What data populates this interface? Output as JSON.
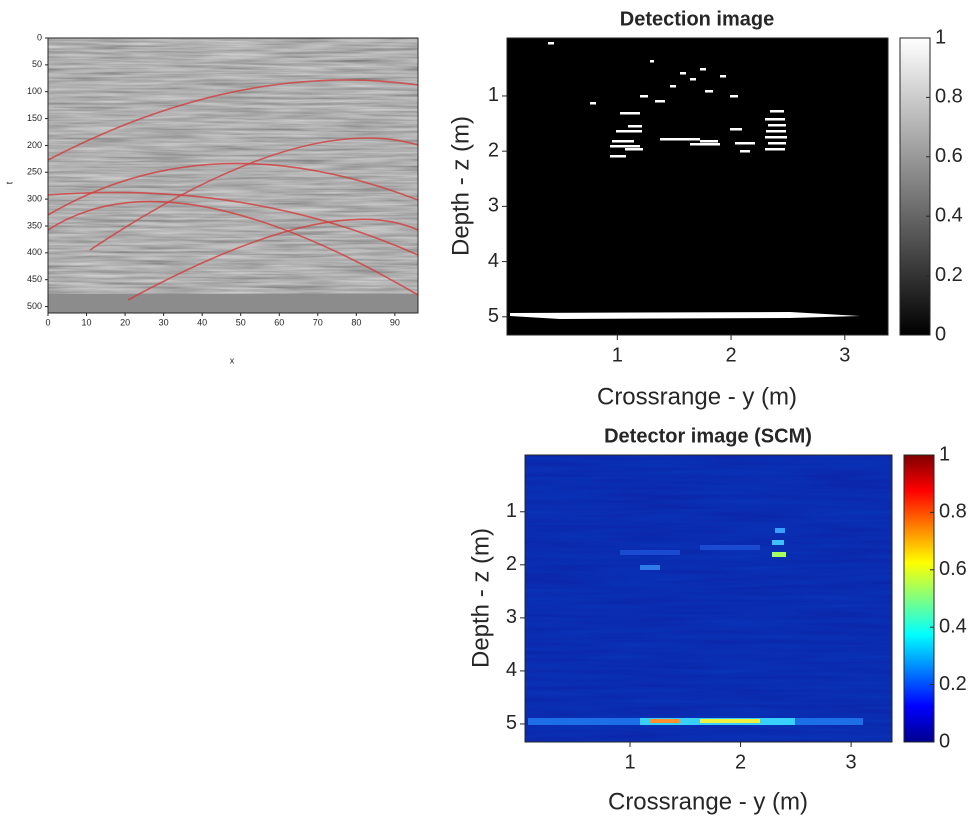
{
  "chart_data": [
    {
      "type": "image",
      "xlabel": "x",
      "ylabel": "t",
      "colormap": "gray",
      "xlim": [
        0,
        96
      ],
      "ylim": [
        512,
        0
      ],
      "xticks": [
        0,
        10,
        20,
        30,
        40,
        50,
        60,
        70,
        80,
        90
      ],
      "yticks": [
        0,
        50,
        100,
        150,
        200,
        250,
        300,
        350,
        400,
        450,
        500
      ]
    },
    {
      "type": "image",
      "title": "Detection image",
      "xlabel": "Crossrange - y (m)",
      "ylabel": "Depth - z (m)",
      "colormap": "gray",
      "xlim": [
        0.03,
        3.38
      ],
      "ylim": [
        5.33,
        -0.05
      ],
      "xticks": [
        1,
        2,
        3
      ],
      "yticks": [
        1,
        2,
        3,
        4,
        5
      ],
      "clim": [
        0,
        1
      ],
      "cticks": [
        0,
        0.2,
        0.4,
        0.6,
        0.8,
        1
      ]
    },
    {
      "type": "image",
      "title": "Detector image (SCM)",
      "xlabel": "Crossrange - y (m)",
      "ylabel": "Depth - z (m)",
      "colormap": "jet",
      "xlim": [
        0.05,
        3.37
      ],
      "ylim": [
        5.34,
        -0.07
      ],
      "xticks": [
        1,
        2,
        3
      ],
      "yticks": [
        1,
        2,
        3,
        4,
        5
      ],
      "clim": [
        0,
        1
      ],
      "cticks": [
        0,
        0.2,
        0.4,
        0.6,
        0.8,
        1
      ]
    }
  ]
}
